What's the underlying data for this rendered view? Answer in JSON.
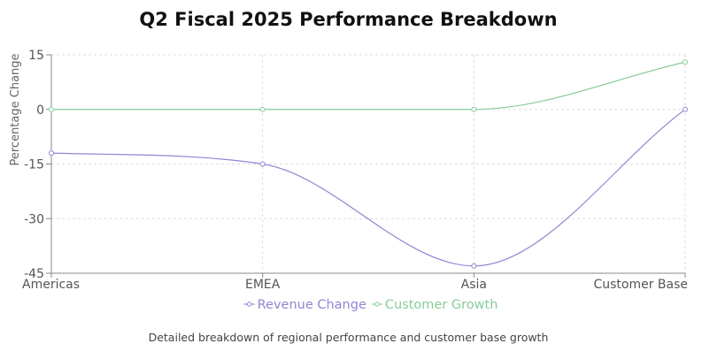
{
  "chart_data": {
    "type": "line",
    "title": "Q2 Fiscal 2025 Performance Breakdown",
    "categories": [
      "Americas",
      "EMEA",
      "Asia",
      "Customer Base"
    ],
    "series": [
      {
        "name": "Revenue Change",
        "values": [
          -12,
          -15,
          -43,
          0
        ],
        "color": "#8f86d4"
      },
      {
        "name": "Customer Growth",
        "values": [
          0,
          0,
          0,
          13
        ],
        "color": "#86cc98"
      }
    ],
    "xlabel": "",
    "ylabel": "Percentage Change",
    "ylim": [
      -45,
      15
    ],
    "yticks": [
      15,
      0,
      -15,
      -30,
      -45
    ],
    "grid": true,
    "legend_position": "bottom",
    "caption": "Detailed breakdown of regional performance and customer base growth"
  },
  "colors": {
    "grid": "#dddddd",
    "axis": "#888888",
    "tick_text": "#555555"
  }
}
